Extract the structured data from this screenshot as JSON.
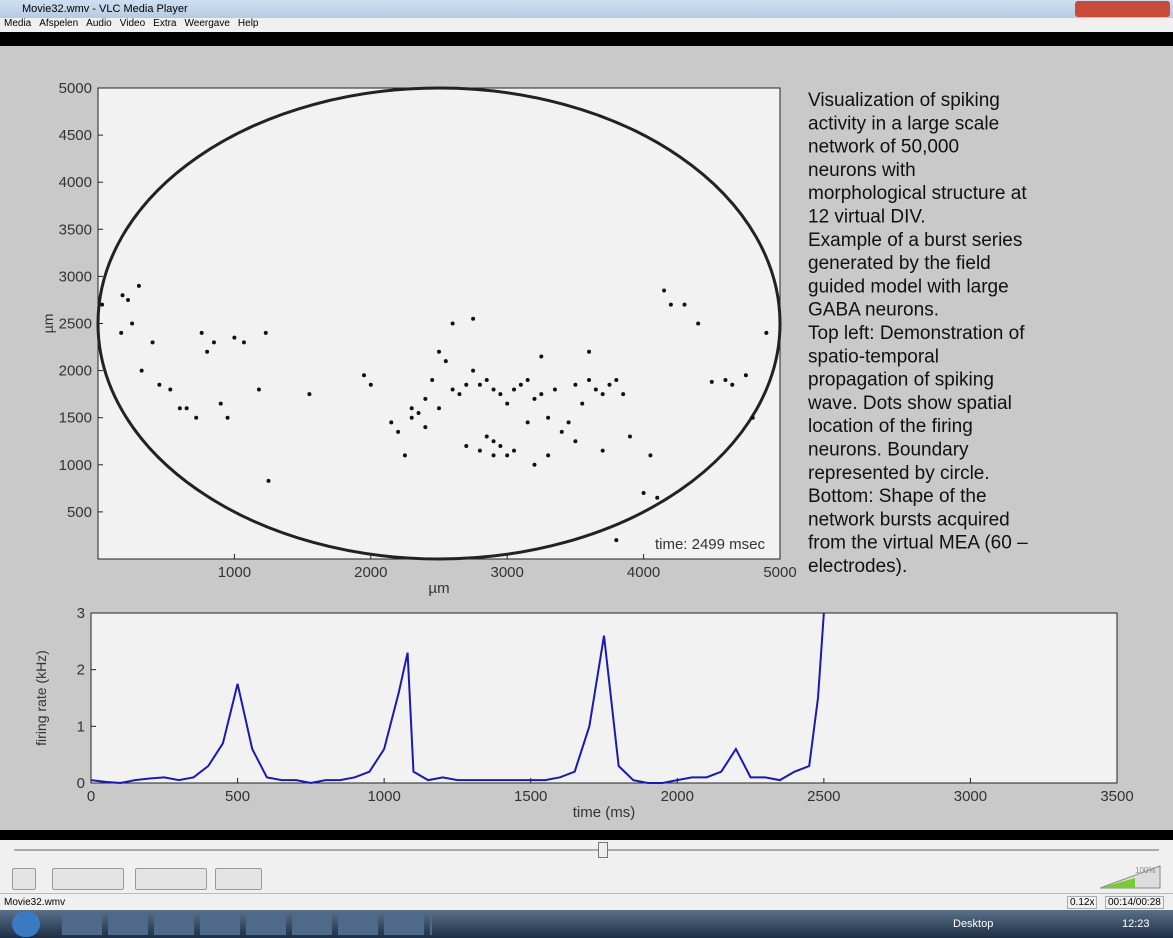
{
  "window": {
    "title": "Movie32.wmv - VLC Media Player"
  },
  "menu": [
    "Media",
    "Afspelen",
    "Audio",
    "Video",
    "Extra",
    "Weergave",
    "Help"
  ],
  "video": {
    "scatter": {
      "type": "scatter",
      "xlabel": "µm",
      "ylabel": "µm",
      "annotation": "time: 2499 msec",
      "xlim": [
        0,
        5000
      ],
      "ylim": [
        0,
        5000
      ],
      "xticks": [
        1000,
        2000,
        3000,
        4000,
        5000
      ],
      "yticks": [
        500,
        1000,
        1500,
        2000,
        2500,
        3000,
        3500,
        4000,
        4500,
        5000
      ],
      "x": [
        30,
        180,
        220,
        300,
        250,
        170,
        320,
        400,
        450,
        530,
        600,
        650,
        720,
        760,
        800,
        850,
        900,
        950,
        1000,
        1070,
        1180,
        1230,
        1250,
        1550,
        1950,
        2000,
        2150,
        2200,
        2250,
        2300,
        2350,
        2400,
        2450,
        2500,
        2550,
        2600,
        2650,
        2700,
        2750,
        2800,
        2850,
        2900,
        2950,
        3000,
        3050,
        3100,
        3150,
        3200,
        3250,
        3300,
        3350,
        3400,
        3450,
        3500,
        3550,
        3600,
        3650,
        3700,
        3750,
        3800,
        3850,
        2700,
        2800,
        2900,
        3000,
        2850,
        2950,
        3050,
        2600,
        2750,
        2500,
        2400,
        2300,
        3200,
        3300,
        3500,
        3700,
        3900,
        4050,
        4150,
        4200,
        4300,
        4400,
        4500,
        4600,
        4650,
        4750,
        4800,
        4900,
        3600,
        3250,
        3150,
        2900,
        3800,
        4000,
        4100
      ],
      "y": [
        2700,
        2800,
        2750,
        2900,
        2500,
        2400,
        2000,
        2300,
        1850,
        1800,
        1600,
        1600,
        1500,
        2400,
        2200,
        2300,
        1650,
        1500,
        2350,
        2300,
        1800,
        2400,
        830,
        1750,
        1950,
        1850,
        1450,
        1350,
        1100,
        1600,
        1550,
        1700,
        1900,
        1600,
        2100,
        1800,
        1750,
        1850,
        2000,
        1850,
        1900,
        1800,
        1750,
        1650,
        1800,
        1850,
        1900,
        1700,
        2150,
        1500,
        1800,
        1350,
        1450,
        1850,
        1650,
        1900,
        1800,
        1750,
        1850,
        1900,
        1750,
        1200,
        1150,
        1250,
        1100,
        1300,
        1200,
        1150,
        2500,
        2550,
        2200,
        1400,
        1500,
        1000,
        1100,
        1250,
        1150,
        1300,
        1100,
        2850,
        2700,
        2700,
        2500,
        1880,
        1900,
        1850,
        1950,
        1500,
        2400,
        2200,
        1750,
        1450,
        1100,
        200,
        700,
        650
      ],
      "color": "#111111"
    },
    "line": {
      "type": "line",
      "xlabel": "time (ms)",
      "ylabel": "firing rate (kHz)",
      "xlim": [
        0,
        3500
      ],
      "ylim": [
        0,
        3
      ],
      "xticks": [
        0,
        500,
        1000,
        1500,
        2000,
        2500,
        3000,
        3500
      ],
      "yticks": [
        0,
        1,
        2,
        3
      ],
      "x": [
        0,
        50,
        100,
        150,
        200,
        250,
        300,
        350,
        400,
        450,
        500,
        550,
        600,
        650,
        700,
        750,
        800,
        850,
        900,
        950,
        1000,
        1050,
        1080,
        1100,
        1150,
        1200,
        1250,
        1300,
        1350,
        1400,
        1450,
        1500,
        1550,
        1600,
        1650,
        1700,
        1750,
        1800,
        1850,
        1900,
        1950,
        2000,
        2050,
        2100,
        2150,
        2200,
        2250,
        2300,
        2350,
        2400,
        2450,
        2480,
        2500
      ],
      "values": [
        0.05,
        0.02,
        0,
        0.05,
        0.08,
        0.1,
        0.05,
        0.1,
        0.3,
        0.7,
        1.75,
        0.6,
        0.1,
        0.05,
        0.05,
        0,
        0.05,
        0.05,
        0.1,
        0.2,
        0.6,
        1.6,
        2.3,
        0.2,
        0.05,
        0.1,
        0.05,
        0.05,
        0.05,
        0.05,
        0.05,
        0.05,
        0.05,
        0.1,
        0.2,
        1.0,
        2.6,
        0.3,
        0.05,
        0,
        0,
        0.05,
        0.1,
        0.1,
        0.2,
        0.6,
        0.1,
        0.1,
        0.05,
        0.2,
        0.3,
        1.5,
        3.0
      ],
      "color": "#1a1ab0"
    },
    "description": [
      "Visualization of spiking",
      "activity in a large scale",
      "network of 50,000",
      "neurons with",
      "morphological structure at",
      "12 virtual DIV.",
      "Example of a burst series",
      "generated by the field",
      "guided model with large",
      "GABA neurons.",
      "Top left: Demonstration of",
      "spatio-temporal",
      "propagation of spiking",
      "wave. Dots show spatial",
      "location of the firing",
      "neurons. Boundary",
      "represented by circle.",
      "Bottom: Shape of the",
      "network bursts acquired",
      "from the virtual MEA (60 –",
      "electrodes)."
    ]
  },
  "status": {
    "file": "Movie32.wmv",
    "speed": "0.12x",
    "time": "00:14/00:28",
    "volume": "100%"
  },
  "taskbar": {
    "desktop": "Desktop",
    "clock": "12:23"
  }
}
